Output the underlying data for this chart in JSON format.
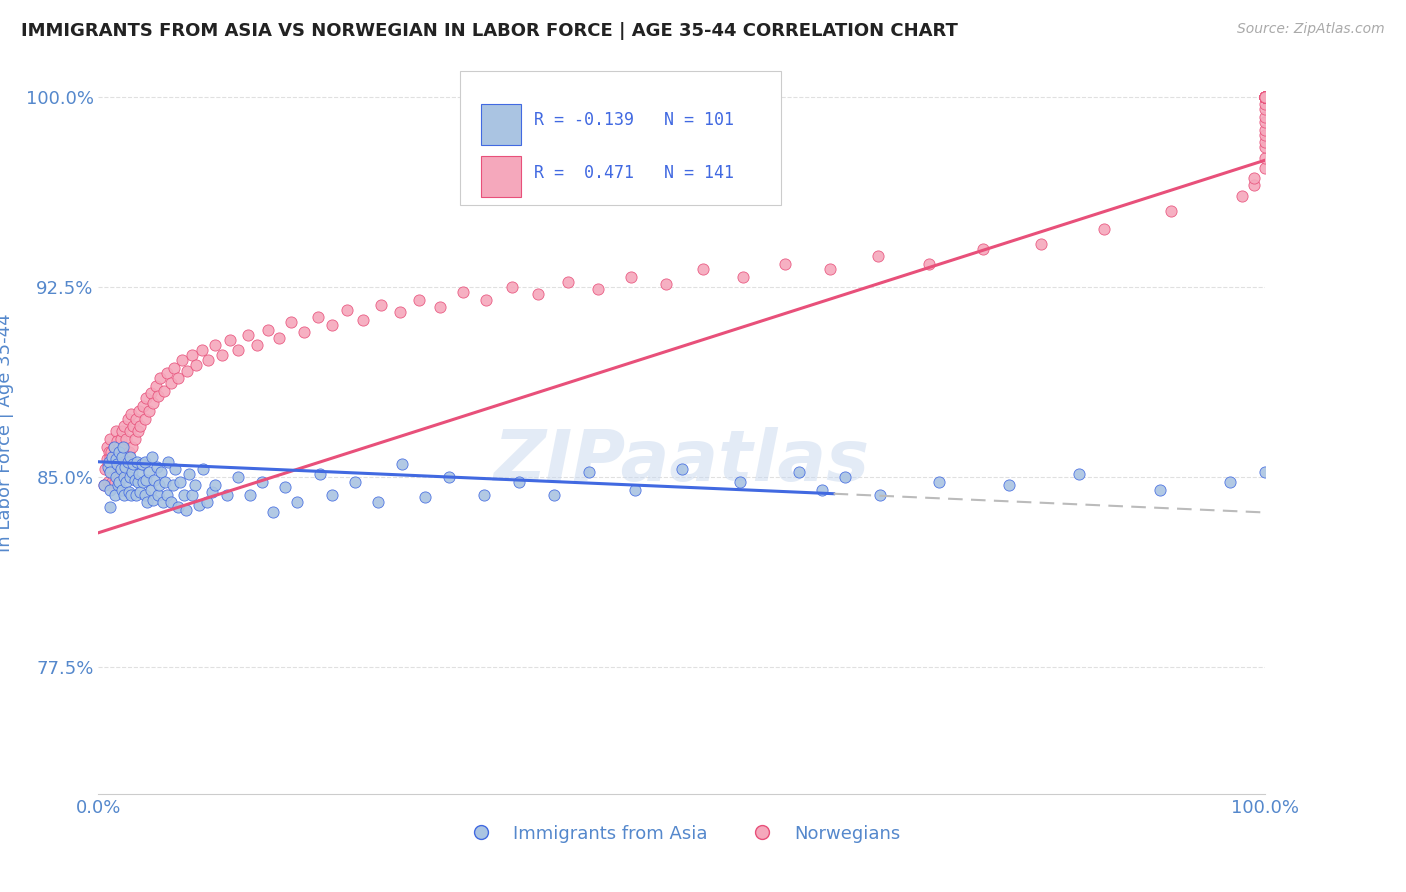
{
  "title": "IMMIGRANTS FROM ASIA VS NORWEGIAN IN LABOR FORCE | AGE 35-44 CORRELATION CHART",
  "source": "Source: ZipAtlas.com",
  "ylabel": "In Labor Force | Age 35-44",
  "xlim": [
    0.0,
    1.0
  ],
  "ylim": [
    0.725,
    1.01
  ],
  "yticks": [
    0.775,
    0.85,
    0.925,
    1.0
  ],
  "ytick_labels": [
    "77.5%",
    "85.0%",
    "92.5%",
    "100.0%"
  ],
  "xtick_labels": [
    "0.0%",
    "100.0%"
  ],
  "xticks": [
    0.0,
    1.0
  ],
  "r_asia": -0.139,
  "n_asia": 101,
  "r_norwegian": 0.471,
  "n_norwegian": 141,
  "asia_color": "#aac4e2",
  "norway_color": "#f5a8bc",
  "trendline_asia_color": "#4169e1",
  "trendline_norway_color": "#e8507a",
  "trendline_asia_dashed_color": "#bbbbbb",
  "legend_label_asia": "Immigrants from Asia",
  "legend_label_norway": "Norwegians",
  "background_color": "#ffffff",
  "grid_color": "#e0e0e0",
  "title_color": "#222222",
  "axis_label_color": "#5588cc",
  "tick_color": "#5588cc",
  "trendline_asia_x0": 0.0,
  "trendline_asia_x1": 1.0,
  "trendline_asia_y0": 0.856,
  "trendline_asia_y1": 0.836,
  "trendline_asia_solid_end": 0.63,
  "trendline_norway_x0": 0.0,
  "trendline_norway_x1": 1.0,
  "trendline_norway_y0": 0.828,
  "trendline_norway_y1": 0.975,
  "asia_x": [
    0.005,
    0.008,
    0.009,
    0.01,
    0.01,
    0.01,
    0.012,
    0.013,
    0.014,
    0.015,
    0.015,
    0.016,
    0.017,
    0.018,
    0.018,
    0.019,
    0.02,
    0.02,
    0.021,
    0.022,
    0.022,
    0.023,
    0.024,
    0.025,
    0.026,
    0.027,
    0.027,
    0.028,
    0.029,
    0.03,
    0.031,
    0.032,
    0.033,
    0.034,
    0.035,
    0.036,
    0.037,
    0.038,
    0.04,
    0.04,
    0.041,
    0.042,
    0.043,
    0.045,
    0.046,
    0.047,
    0.048,
    0.05,
    0.051,
    0.052,
    0.054,
    0.055,
    0.057,
    0.059,
    0.06,
    0.062,
    0.064,
    0.066,
    0.068,
    0.07,
    0.073,
    0.075,
    0.078,
    0.08,
    0.083,
    0.086,
    0.09,
    0.093,
    0.097,
    0.1,
    0.11,
    0.12,
    0.13,
    0.14,
    0.15,
    0.16,
    0.17,
    0.19,
    0.2,
    0.22,
    0.24,
    0.26,
    0.28,
    0.3,
    0.33,
    0.36,
    0.39,
    0.42,
    0.46,
    0.5,
    0.55,
    0.6,
    0.62,
    0.64,
    0.67,
    0.72,
    0.78,
    0.84,
    0.91,
    0.97,
    1.0
  ],
  "asia_y": [
    0.847,
    0.854,
    0.856,
    0.852,
    0.845,
    0.838,
    0.858,
    0.862,
    0.843,
    0.857,
    0.85,
    0.855,
    0.847,
    0.86,
    0.848,
    0.853,
    0.858,
    0.845,
    0.862,
    0.85,
    0.843,
    0.854,
    0.848,
    0.856,
    0.844,
    0.858,
    0.85,
    0.843,
    0.852,
    0.855,
    0.849,
    0.843,
    0.856,
    0.848,
    0.851,
    0.844,
    0.855,
    0.848,
    0.843,
    0.856,
    0.849,
    0.84,
    0.852,
    0.845,
    0.858,
    0.841,
    0.849,
    0.854,
    0.843,
    0.847,
    0.852,
    0.84,
    0.848,
    0.843,
    0.856,
    0.84,
    0.847,
    0.853,
    0.838,
    0.848,
    0.843,
    0.837,
    0.851,
    0.843,
    0.847,
    0.839,
    0.853,
    0.84,
    0.844,
    0.847,
    0.843,
    0.85,
    0.843,
    0.848,
    0.836,
    0.846,
    0.84,
    0.851,
    0.843,
    0.848,
    0.84,
    0.855,
    0.842,
    0.85,
    0.843,
    0.848,
    0.843,
    0.852,
    0.845,
    0.853,
    0.848,
    0.852,
    0.845,
    0.85,
    0.843,
    0.848,
    0.847,
    0.851,
    0.845,
    0.848,
    0.852
  ],
  "norway_x": [
    0.005,
    0.006,
    0.007,
    0.007,
    0.008,
    0.008,
    0.009,
    0.009,
    0.01,
    0.01,
    0.01,
    0.011,
    0.011,
    0.012,
    0.012,
    0.013,
    0.013,
    0.014,
    0.014,
    0.015,
    0.015,
    0.015,
    0.016,
    0.016,
    0.017,
    0.017,
    0.018,
    0.018,
    0.019,
    0.019,
    0.02,
    0.02,
    0.02,
    0.021,
    0.022,
    0.022,
    0.023,
    0.024,
    0.025,
    0.026,
    0.027,
    0.028,
    0.029,
    0.03,
    0.031,
    0.032,
    0.034,
    0.035,
    0.036,
    0.038,
    0.04,
    0.041,
    0.043,
    0.045,
    0.047,
    0.049,
    0.051,
    0.053,
    0.056,
    0.059,
    0.062,
    0.065,
    0.068,
    0.072,
    0.076,
    0.08,
    0.084,
    0.089,
    0.094,
    0.1,
    0.106,
    0.113,
    0.12,
    0.128,
    0.136,
    0.145,
    0.155,
    0.165,
    0.176,
    0.188,
    0.2,
    0.213,
    0.227,
    0.242,
    0.258,
    0.275,
    0.293,
    0.312,
    0.332,
    0.354,
    0.377,
    0.402,
    0.428,
    0.456,
    0.486,
    0.518,
    0.552,
    0.588,
    0.627,
    0.668,
    0.712,
    0.758,
    0.808,
    0.862,
    0.919,
    0.98,
    0.99,
    0.99,
    1.0,
    1.0,
    1.0,
    1.0,
    1.0,
    1.0,
    1.0,
    1.0,
    1.0,
    1.0,
    1.0,
    1.0,
    1.0,
    1.0,
    1.0,
    1.0,
    1.0,
    1.0,
    1.0,
    1.0,
    1.0,
    1.0,
    1.0,
    1.0,
    1.0,
    1.0,
    1.0,
    1.0,
    1.0
  ],
  "norway_y": [
    0.847,
    0.853,
    0.857,
    0.862,
    0.848,
    0.855,
    0.853,
    0.86,
    0.847,
    0.858,
    0.865,
    0.852,
    0.86,
    0.848,
    0.857,
    0.853,
    0.862,
    0.848,
    0.857,
    0.852,
    0.86,
    0.868,
    0.855,
    0.864,
    0.85,
    0.858,
    0.853,
    0.862,
    0.857,
    0.865,
    0.852,
    0.86,
    0.868,
    0.855,
    0.862,
    0.87,
    0.857,
    0.865,
    0.873,
    0.86,
    0.868,
    0.875,
    0.862,
    0.87,
    0.865,
    0.873,
    0.868,
    0.876,
    0.87,
    0.878,
    0.873,
    0.881,
    0.876,
    0.883,
    0.879,
    0.886,
    0.882,
    0.889,
    0.884,
    0.891,
    0.887,
    0.893,
    0.889,
    0.896,
    0.892,
    0.898,
    0.894,
    0.9,
    0.896,
    0.902,
    0.898,
    0.904,
    0.9,
    0.906,
    0.902,
    0.908,
    0.905,
    0.911,
    0.907,
    0.913,
    0.91,
    0.916,
    0.912,
    0.918,
    0.915,
    0.92,
    0.917,
    0.923,
    0.92,
    0.925,
    0.922,
    0.927,
    0.924,
    0.929,
    0.926,
    0.932,
    0.929,
    0.934,
    0.932,
    0.937,
    0.934,
    0.94,
    0.942,
    0.948,
    0.955,
    0.961,
    0.965,
    0.968,
    0.972,
    0.976,
    0.98,
    0.982,
    0.985,
    0.987,
    0.99,
    0.992,
    0.995,
    0.997,
    1.0,
    1.0,
    1.0,
    1.0,
    1.0,
    1.0,
    1.0,
    1.0,
    1.0,
    1.0,
    1.0,
    1.0,
    1.0,
    1.0,
    1.0,
    1.0,
    1.0,
    1.0,
    1.0
  ]
}
